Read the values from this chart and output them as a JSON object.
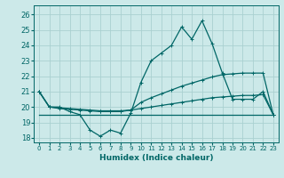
{
  "xlabel": "Humidex (Indice chaleur)",
  "background_color": "#cce9e9",
  "grid_color": "#aad0d0",
  "line_color": "#006666",
  "xlim": [
    -0.5,
    23.5
  ],
  "ylim": [
    17.7,
    26.6
  ],
  "yticks": [
    18,
    19,
    20,
    21,
    22,
    23,
    24,
    25,
    26
  ],
  "xticks": [
    0,
    1,
    2,
    3,
    4,
    5,
    6,
    7,
    8,
    9,
    10,
    11,
    12,
    13,
    14,
    15,
    16,
    17,
    18,
    19,
    20,
    21,
    22,
    23
  ],
  "series": {
    "main": [
      21.0,
      20.0,
      20.0,
      19.7,
      19.5,
      18.5,
      18.1,
      18.5,
      18.3,
      19.6,
      21.6,
      23.0,
      23.5,
      24.0,
      25.2,
      24.4,
      25.6,
      24.1,
      22.2,
      20.5,
      20.5,
      20.5,
      21.0,
      19.5
    ],
    "line3": [
      21.0,
      20.0,
      19.9,
      19.85,
      19.8,
      19.75,
      19.7,
      19.7,
      19.7,
      19.8,
      20.3,
      20.6,
      20.85,
      21.1,
      21.35,
      21.55,
      21.75,
      21.95,
      22.1,
      22.15,
      22.2,
      22.2,
      22.2,
      19.5
    ],
    "line2": [
      21.0,
      20.0,
      19.95,
      19.9,
      19.85,
      19.8,
      19.75,
      19.75,
      19.75,
      19.8,
      19.9,
      20.0,
      20.1,
      20.2,
      20.3,
      20.4,
      20.5,
      20.6,
      20.65,
      20.7,
      20.75,
      20.75,
      20.8,
      19.5
    ],
    "flat": [
      19.5,
      19.5,
      19.5,
      19.5,
      19.5,
      19.5,
      19.5,
      19.5,
      19.5,
      19.5,
      19.5,
      19.5,
      19.5,
      19.5,
      19.5,
      19.5,
      19.5,
      19.5,
      19.5,
      19.5,
      19.5,
      19.5,
      19.5,
      19.5
    ]
  }
}
